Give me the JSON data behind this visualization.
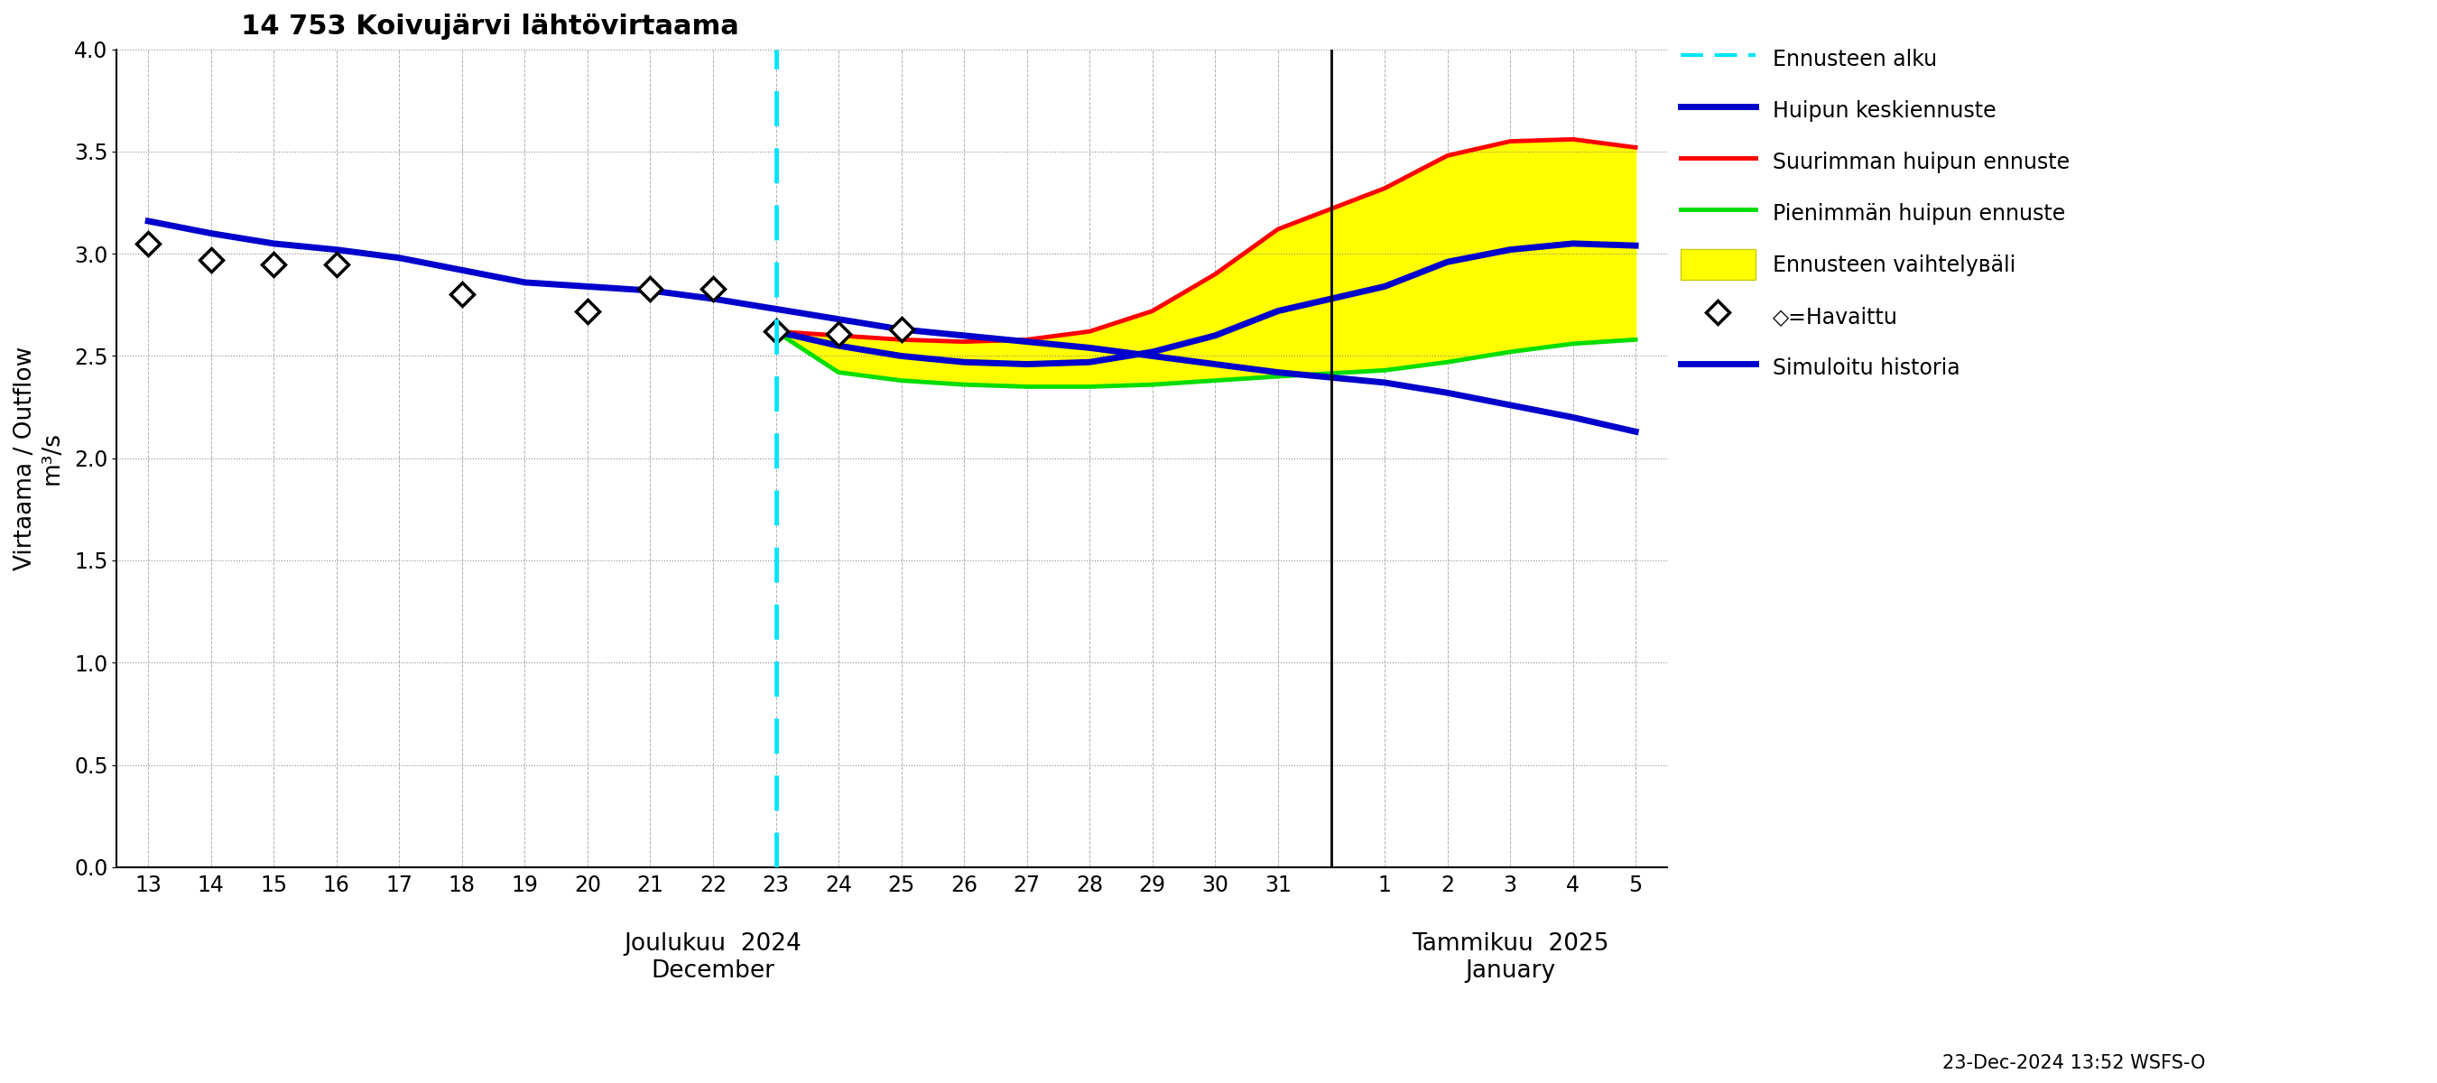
{
  "title": "14 753 Koivujärvi lähtövirtaama",
  "ylabel1": "Virtaama / Outflow",
  "ylabel2": "m³/s",
  "ylim": [
    0.0,
    4.0
  ],
  "yticks": [
    0.0,
    0.5,
    1.0,
    1.5,
    2.0,
    2.5,
    3.0,
    3.5,
    4.0
  ],
  "vline_color": "#00e5ff",
  "sim_color": "#0000cc",
  "max_color": "#ff0000",
  "min_color": "#00dd00",
  "fill_color": "#ffff00",
  "footnote": "23-Dec-2024 13:52 WSFS-O",
  "x_dec_labels": [
    "13",
    "14",
    "15",
    "16",
    "17",
    "18",
    "19",
    "20",
    "21",
    "22",
    "23",
    "24",
    "25",
    "26",
    "27",
    "28",
    "29",
    "30",
    "31"
  ],
  "x_jan_labels": [
    "1",
    "2",
    "3",
    "4",
    "5"
  ],
  "sim_hist_y": [
    3.16,
    3.1,
    3.05,
    3.02,
    2.98,
    2.92,
    2.86,
    2.84,
    2.82,
    2.78,
    2.73,
    2.68,
    2.63,
    2.6,
    2.57,
    2.54,
    2.5,
    2.46,
    2.42,
    2.37,
    2.32,
    2.26,
    2.2,
    2.13
  ],
  "obs_x_idx": [
    0,
    1,
    2,
    3,
    5,
    7,
    8,
    9,
    10,
    11,
    12
  ],
  "obs_y": [
    3.05,
    2.97,
    2.95,
    2.95,
    2.8,
    2.72,
    2.83,
    2.83,
    2.62,
    2.61,
    2.63
  ],
  "forecast_x_idx": [
    10,
    11,
    12,
    13,
    14,
    15,
    16,
    17,
    18,
    19,
    20,
    21,
    22,
    23
  ],
  "max_forecast_y": [
    2.62,
    2.6,
    2.58,
    2.57,
    2.58,
    2.62,
    2.72,
    2.9,
    3.12,
    3.32,
    3.48,
    3.55,
    3.56,
    3.52
  ],
  "min_forecast_y": [
    2.62,
    2.42,
    2.38,
    2.36,
    2.35,
    2.35,
    2.36,
    2.38,
    2.4,
    2.43,
    2.47,
    2.52,
    2.56,
    2.58
  ],
  "mean_forecast_y": [
    2.62,
    2.55,
    2.5,
    2.47,
    2.46,
    2.47,
    2.52,
    2.6,
    2.72,
    2.84,
    2.96,
    3.02,
    3.05,
    3.04
  ],
  "title_fontsize": 22,
  "tick_fontsize": 17,
  "label_fontsize": 19,
  "legend_fontsize": 17,
  "footnote_fontsize": 15
}
